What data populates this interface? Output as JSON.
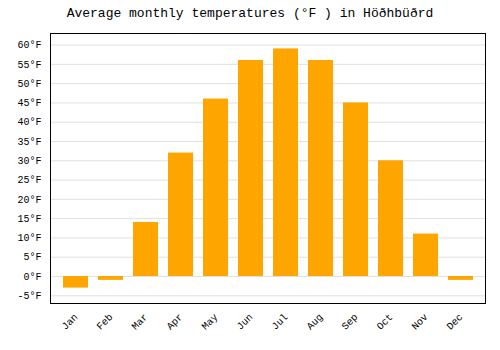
{
  "chart_data": {
    "type": "bar",
    "title": "Average monthly temperatures (°F ) in Höðhbüðrd",
    "categories": [
      "Jan",
      "Feb",
      "Mar",
      "Apr",
      "May",
      "Jun",
      "Jul",
      "Aug",
      "Sep",
      "Oct",
      "Nov",
      "Dec"
    ],
    "values": [
      -3,
      -1,
      14,
      32,
      46,
      56,
      59,
      56,
      45,
      30,
      11,
      -1
    ],
    "color": "#FFA500",
    "ylim": [
      -7,
      63
    ],
    "yticks": [
      {
        "value": -5,
        "label": "-5°F"
      },
      {
        "value": 0,
        "label": "0°F"
      },
      {
        "value": 5,
        "label": "5°F"
      },
      {
        "value": 10,
        "label": "10°F"
      },
      {
        "value": 15,
        "label": "15°F"
      },
      {
        "value": 20,
        "label": "20°F"
      },
      {
        "value": 25,
        "label": "25°F"
      },
      {
        "value": 30,
        "label": "30°F"
      },
      {
        "value": 35,
        "label": "35°F"
      },
      {
        "value": 40,
        "label": "40°F"
      },
      {
        "value": 45,
        "label": "45°F"
      },
      {
        "value": 50,
        "label": "50°F"
      },
      {
        "value": 55,
        "label": "55°F"
      },
      {
        "value": 60,
        "label": "60°F"
      }
    ],
    "grid": true
  }
}
